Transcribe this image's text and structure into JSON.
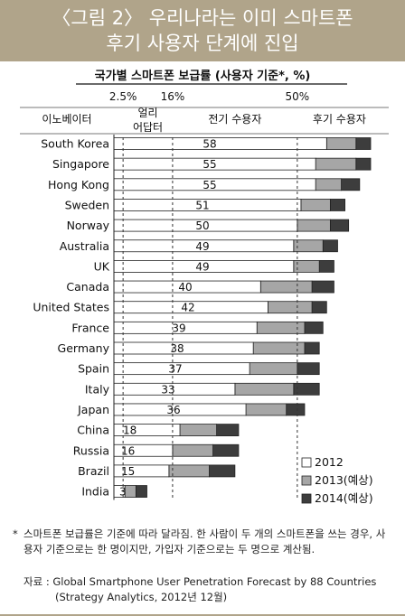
{
  "header": {
    "line1": "〈그림 2〉 우리나라는 이미 스마트폰",
    "line2": "후기 사용자 단계에 진입"
  },
  "chart_data": {
    "type": "bar",
    "title": "국가별 스마트폰 보급률 (사용자 기준*, %)",
    "stage_labels": [
      "이노베이터",
      "얼리 어답터",
      "전기 수용자",
      "후기 수용자"
    ],
    "threshold_labels": [
      "2.5%",
      "16%",
      "50%"
    ],
    "thresholds": [
      2.5,
      16,
      50
    ],
    "xlim": [
      0,
      70
    ],
    "categories": [
      "South Korea",
      "Singapore",
      "Hong Kong",
      "Sweden",
      "Norway",
      "Australia",
      "UK",
      "Canada",
      "United States",
      "France",
      "Germany",
      "Spain",
      "Italy",
      "Japan",
      "China",
      "Russia",
      "Brazil",
      "India"
    ],
    "series": [
      {
        "name": "2012",
        "color": "#ffffff",
        "values": [
          58,
          55,
          55,
          51,
          50,
          49,
          49,
          40,
          42,
          39,
          38,
          37,
          33,
          36,
          18,
          16,
          15,
          3
        ]
      },
      {
        "name": "2013(예상)",
        "color": "#a6a6a6",
        "values": [
          66,
          66,
          62,
          59,
          59,
          57,
          56,
          54,
          54,
          52,
          52,
          50,
          49,
          47,
          28,
          27,
          26,
          6
        ]
      },
      {
        "name": "2014(예상)",
        "color": "#3d3d3d",
        "values": [
          70,
          70,
          67,
          63,
          64,
          61,
          60,
          60,
          58,
          57,
          56,
          56,
          56,
          52,
          34,
          34,
          33,
          9
        ]
      }
    ],
    "legend_position": "bottom-right"
  },
  "footnote": {
    "star": "*",
    "text": "스마트폰 보급률은 기준에 따라 달라짐. 한 사람이 두 개의 스마트폰을 쓰는 경우, 사용자 기준으로는 한 명이지만, 가입자 기준으로는 두 명으로 계산됨."
  },
  "source": {
    "line1": "자료 : Global Smartphone User Penetration Forecast by 88 Countries",
    "line2": "(Strategy Analytics, 2012년 12월)"
  }
}
